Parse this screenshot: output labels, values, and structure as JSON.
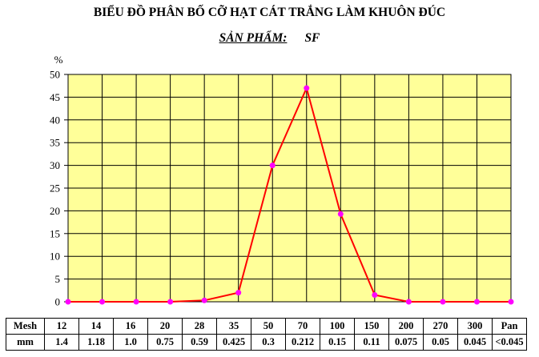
{
  "chart_data": {
    "type": "line",
    "title": "BIỂU ĐỒ PHÂN BỐ CỠ HẠT CÁT TRẮNG LÀM KHUÔN ĐÚC",
    "subtitle_label": "SẢN PHẨM:",
    "subtitle_value": "SF",
    "ylabel": "%",
    "ylim": [
      0,
      50
    ],
    "yticks": [
      0,
      5,
      10,
      15,
      20,
      25,
      30,
      35,
      40,
      45,
      50
    ],
    "grid": true,
    "plot_background": "#FFFF99",
    "line_color": "#FF0000",
    "marker_color": "#FF00FF",
    "categories": [
      "12",
      "14",
      "16",
      "20",
      "28",
      "35",
      "50",
      "70",
      "100",
      "150",
      "200",
      "270",
      "300",
      "Pan"
    ],
    "series": [
      {
        "values": [
          0,
          0,
          0,
          0,
          0.3,
          2,
          30,
          47,
          19.3,
          1.5,
          0,
          0,
          0,
          0
        ]
      }
    ],
    "table": {
      "row1_label": "Mesh",
      "row2_label": "mm",
      "mesh": [
        "12",
        "14",
        "16",
        "20",
        "28",
        "35",
        "50",
        "70",
        "100",
        "150",
        "200",
        "270",
        "300",
        "Pan"
      ],
      "mm": [
        "1.4",
        "1.18",
        "1.0",
        "0.75",
        "0.59",
        "0.425",
        "0.3",
        "0.212",
        "0.15",
        "0.11",
        "0.075",
        "0.05",
        "0.045",
        "<0.045"
      ]
    }
  }
}
